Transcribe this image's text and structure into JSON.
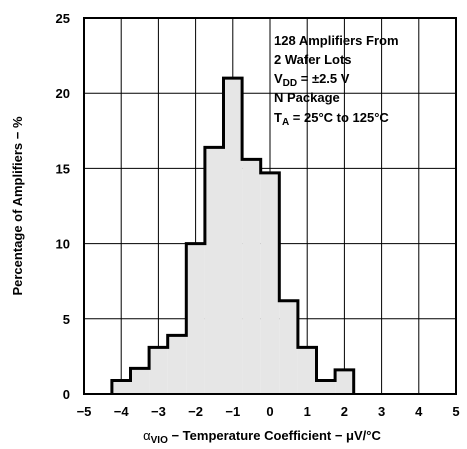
{
  "chart_data": {
    "type": "histogram",
    "title": "",
    "xlabel": "αVIO − Temperature Coefficient − μV/°C",
    "xlabel_parts": {
      "symbol": "α",
      "subscript": "VIO",
      "rest": " − Temperature Coefficient − μV/°C"
    },
    "ylabel": "Percentage of Amplifiers − %",
    "xlim": [
      -5,
      5
    ],
    "ylim": [
      0,
      25
    ],
    "x_ticks": [
      "−5",
      "−4",
      "−3",
      "−2",
      "−1",
      "0",
      "1",
      "2",
      "3",
      "4",
      "5"
    ],
    "x_tick_values": [
      -5,
      -4,
      -3,
      -2,
      -1,
      0,
      1,
      2,
      3,
      4,
      5
    ],
    "y_ticks": [
      "0",
      "5",
      "10",
      "15",
      "20",
      "25"
    ],
    "y_tick_values": [
      0,
      5,
      10,
      15,
      20,
      25
    ],
    "grid": true,
    "fill_color": "#e6e6e6",
    "bins": [
      {
        "x0": -4.25,
        "x1": -3.75,
        "value": 0.9
      },
      {
        "x0": -3.75,
        "x1": -3.25,
        "value": 1.7
      },
      {
        "x0": -3.25,
        "x1": -2.75,
        "value": 3.1
      },
      {
        "x0": -2.75,
        "x1": -2.25,
        "value": 3.9
      },
      {
        "x0": -2.25,
        "x1": -1.75,
        "value": 10.0
      },
      {
        "x0": -1.75,
        "x1": -1.25,
        "value": 16.4
      },
      {
        "x0": -1.25,
        "x1": -0.75,
        "value": 21.0
      },
      {
        "x0": -0.75,
        "x1": -0.25,
        "value": 15.6
      },
      {
        "x0": -0.25,
        "x1": 0.25,
        "value": 14.7
      },
      {
        "x0": 0.25,
        "x1": 0.75,
        "value": 6.2
      },
      {
        "x0": 0.75,
        "x1": 1.25,
        "value": 3.1
      },
      {
        "x0": 1.25,
        "x1": 1.75,
        "value": 0.9
      },
      {
        "x0": 1.75,
        "x1": 2.25,
        "value": 1.6
      }
    ],
    "annotation": [
      {
        "text": "128 Amplifiers From"
      },
      {
        "text": "2 Wafer Lots"
      },
      {
        "text": "V",
        "sub": "DD",
        "rest": " = ±2.5 V"
      },
      {
        "text": "N Package"
      },
      {
        "text": "T",
        "sub": "A",
        "rest": " = 25°C to 125°C"
      }
    ]
  }
}
